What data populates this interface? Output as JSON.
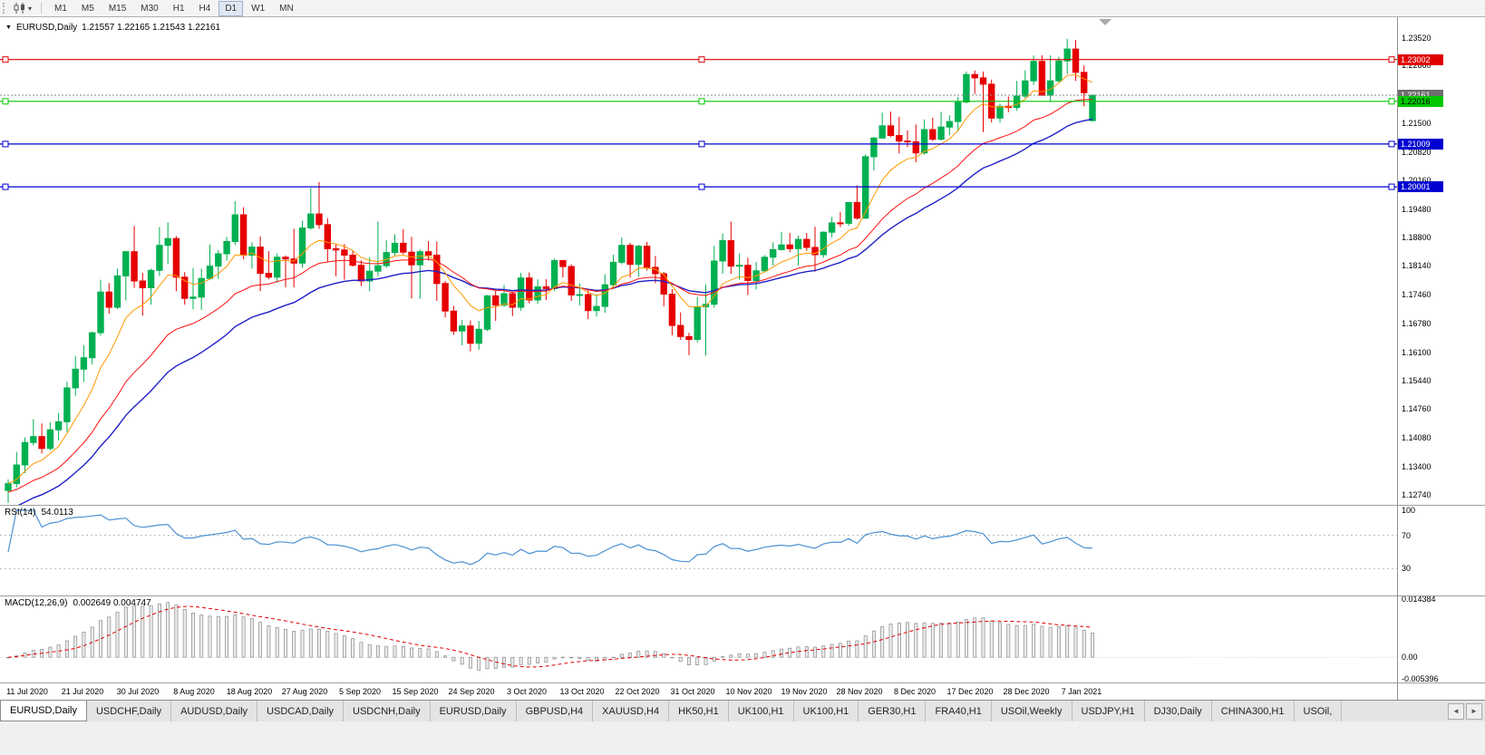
{
  "icons": {
    "caret": "▾",
    "collapse": "▼",
    "scroll_left": "◄",
    "scroll_right": "►"
  },
  "toolbar": {
    "timeframes": [
      {
        "label": "M1",
        "active": false
      },
      {
        "label": "M5",
        "active": false
      },
      {
        "label": "M15",
        "active": false
      },
      {
        "label": "M30",
        "active": false
      },
      {
        "label": "H1",
        "active": false
      },
      {
        "label": "H4",
        "active": false
      },
      {
        "label": "D1",
        "active": true
      },
      {
        "label": "W1",
        "active": false
      },
      {
        "label": "MN",
        "active": false
      }
    ]
  },
  "chart": {
    "title": "EURUSD,Daily",
    "ohlc_text": "1.21557 1.22165 1.21543 1.22161",
    "y_min": 1.125,
    "y_max": 1.24,
    "y_ticks": [
      "1.23520",
      "1.22860",
      "1.21500",
      "1.20820",
      "1.20160",
      "1.19480",
      "1.18800",
      "1.18140",
      "1.17460",
      "1.16780",
      "1.16100",
      "1.15440",
      "1.14760",
      "1.14080",
      "1.13400",
      "1.12740"
    ],
    "hlines": [
      {
        "price": 1.23002,
        "label": "1.23002",
        "color": "#e00000",
        "text": "#ffffff"
      },
      {
        "price": 1.22016,
        "label": "1.22016",
        "color": "#00c800",
        "text": "#000000"
      },
      {
        "price": 1.21009,
        "label": "1.21009",
        "color": "#0000d0",
        "text": "#ffffff"
      },
      {
        "price": 1.20001,
        "label": "1.20001",
        "color": "#0000d0",
        "text": "#ffffff"
      }
    ],
    "colors": {
      "bull": "#00b050",
      "bear": "#e60000",
      "ma_fast": "#ff9900",
      "ma_mid": "#ff1010",
      "ma_slow": "#2020c8",
      "rsi": "#4a90d2",
      "macd_hist_fill": "#ececec",
      "macd_hist_stroke": "#8a8a8a",
      "macd_signal": "#e00000",
      "current_badge": "#6e6e6e"
    }
  },
  "chart_data": {
    "type": "candlestick",
    "symbol": "EURUSD",
    "timeframe": "Daily",
    "current_price_label": "1.22161",
    "current_price_value": 1.22161,
    "x_labels": [
      "11 Jul 2020",
      "21 Jul 2020",
      "30 Jul 2020",
      "8 Aug 2020",
      "18 Aug 2020",
      "27 Aug 2020",
      "5 Sep 2020",
      "15 Sep 2020",
      "24 Sep 2020",
      "3 Oct 2020",
      "13 Oct 2020",
      "22 Oct 2020",
      "31 Oct 2020",
      "10 Nov 2020",
      "19 Nov 2020",
      "28 Nov 2020",
      "8 Dec 2020",
      "17 Dec 2020",
      "28 Dec 2020",
      "7 Jan 2021"
    ],
    "ohlc": [
      [
        1.1284,
        1.131,
        1.1255,
        1.13
      ],
      [
        1.13,
        1.1375,
        1.1291,
        1.1344
      ],
      [
        1.1344,
        1.1409,
        1.1325,
        1.1397
      ],
      [
        1.1397,
        1.1452,
        1.139,
        1.1411
      ],
      [
        1.1411,
        1.1442,
        1.1371,
        1.1383
      ],
      [
        1.1383,
        1.1444,
        1.1378,
        1.1427
      ],
      [
        1.1427,
        1.1467,
        1.1402,
        1.1446
      ],
      [
        1.1446,
        1.154,
        1.1422,
        1.1526
      ],
      [
        1.1526,
        1.1601,
        1.1507,
        1.157
      ],
      [
        1.157,
        1.1627,
        1.154,
        1.1597
      ],
      [
        1.1597,
        1.1658,
        1.1581,
        1.1656
      ],
      [
        1.1656,
        1.1781,
        1.1649,
        1.1752
      ],
      [
        1.1752,
        1.1773,
        1.1701,
        1.1716
      ],
      [
        1.1716,
        1.1807,
        1.1712,
        1.179
      ],
      [
        1.179,
        1.1849,
        1.1732,
        1.1847
      ],
      [
        1.1847,
        1.1908,
        1.1762,
        1.1778
      ],
      [
        1.1778,
        1.1797,
        1.1696,
        1.1762
      ],
      [
        1.1762,
        1.1807,
        1.1722,
        1.1803
      ],
      [
        1.1803,
        1.1905,
        1.179,
        1.1862
      ],
      [
        1.1862,
        1.1916,
        1.1818,
        1.1878
      ],
      [
        1.1878,
        1.1884,
        1.1754,
        1.1787
      ],
      [
        1.1787,
        1.1799,
        1.1722,
        1.1737
      ],
      [
        1.1737,
        1.1808,
        1.1711,
        1.174
      ],
      [
        1.174,
        1.1807,
        1.171,
        1.1784
      ],
      [
        1.1784,
        1.1864,
        1.1781,
        1.1813
      ],
      [
        1.1813,
        1.1851,
        1.1783,
        1.1842
      ],
      [
        1.1842,
        1.1882,
        1.1826,
        1.1871
      ],
      [
        1.1871,
        1.1966,
        1.1863,
        1.1934
      ],
      [
        1.1934,
        1.1952,
        1.1829,
        1.1839
      ],
      [
        1.1839,
        1.1869,
        1.1807,
        1.1858
      ],
      [
        1.1858,
        1.1883,
        1.1754,
        1.1796
      ],
      [
        1.1796,
        1.1848,
        1.1782,
        1.1787
      ],
      [
        1.1787,
        1.1843,
        1.1774,
        1.1834
      ],
      [
        1.1834,
        1.1838,
        1.1763,
        1.183
      ],
      [
        1.183,
        1.1901,
        1.1763,
        1.182
      ],
      [
        1.182,
        1.192,
        1.1809,
        1.1903
      ],
      [
        1.1903,
        1.1997,
        1.1899,
        1.1936
      ],
      [
        1.1936,
        1.2011,
        1.1901,
        1.1911
      ],
      [
        1.1911,
        1.1926,
        1.1823,
        1.1854
      ],
      [
        1.1854,
        1.1865,
        1.1789,
        1.1851
      ],
      [
        1.1851,
        1.1865,
        1.1781,
        1.1839
      ],
      [
        1.1839,
        1.1849,
        1.1812,
        1.1815
      ],
      [
        1.1815,
        1.1827,
        1.1766,
        1.1778
      ],
      [
        1.1778,
        1.1834,
        1.1754,
        1.1801
      ],
      [
        1.1801,
        1.1918,
        1.1789,
        1.1814
      ],
      [
        1.1814,
        1.1874,
        1.1809,
        1.1845
      ],
      [
        1.1845,
        1.1888,
        1.1838,
        1.1867
      ],
      [
        1.1867,
        1.19,
        1.1841,
        1.1846
      ],
      [
        1.1846,
        1.1882,
        1.1737,
        1.1816
      ],
      [
        1.1816,
        1.1852,
        1.1736,
        1.1847
      ],
      [
        1.1847,
        1.1872,
        1.1826,
        1.1839
      ],
      [
        1.1839,
        1.1871,
        1.1731,
        1.1772
      ],
      [
        1.1772,
        1.1778,
        1.1692,
        1.1707
      ],
      [
        1.1707,
        1.1719,
        1.1651,
        1.166
      ],
      [
        1.166,
        1.1686,
        1.1626,
        1.1672
      ],
      [
        1.1672,
        1.1685,
        1.1612,
        1.1631
      ],
      [
        1.1631,
        1.1684,
        1.1616,
        1.1664
      ],
      [
        1.1664,
        1.1745,
        1.166,
        1.1743
      ],
      [
        1.1743,
        1.1755,
        1.1684,
        1.1721
      ],
      [
        1.1721,
        1.1769,
        1.1717,
        1.1748
      ],
      [
        1.1748,
        1.1751,
        1.1695,
        1.1716
      ],
      [
        1.1716,
        1.1797,
        1.1708,
        1.1785
      ],
      [
        1.1785,
        1.1798,
        1.1725,
        1.1733
      ],
      [
        1.1733,
        1.1782,
        1.1724,
        1.1764
      ],
      [
        1.1764,
        1.1782,
        1.1733,
        1.176
      ],
      [
        1.176,
        1.1831,
        1.1754,
        1.1826
      ],
      [
        1.1826,
        1.1827,
        1.1786,
        1.1812
      ],
      [
        1.1812,
        1.1817,
        1.1731,
        1.1745
      ],
      [
        1.1745,
        1.1772,
        1.172,
        1.1746
      ],
      [
        1.1746,
        1.1758,
        1.1688,
        1.1708
      ],
      [
        1.1708,
        1.1747,
        1.1694,
        1.1718
      ],
      [
        1.1718,
        1.1794,
        1.1703,
        1.1769
      ],
      [
        1.1769,
        1.184,
        1.176,
        1.1822
      ],
      [
        1.1822,
        1.1881,
        1.1817,
        1.1862
      ],
      [
        1.1862,
        1.1868,
        1.1786,
        1.1817
      ],
      [
        1.1817,
        1.1863,
        1.1787,
        1.186
      ],
      [
        1.186,
        1.187,
        1.1803,
        1.181
      ],
      [
        1.181,
        1.1837,
        1.1773,
        1.1795
      ],
      [
        1.1795,
        1.1799,
        1.1718,
        1.1747
      ],
      [
        1.1747,
        1.1759,
        1.165,
        1.1673
      ],
      [
        1.1673,
        1.1704,
        1.1639,
        1.1647
      ],
      [
        1.1647,
        1.1656,
        1.1603,
        1.164
      ],
      [
        1.164,
        1.174,
        1.1633,
        1.1717
      ],
      [
        1.1717,
        1.177,
        1.1602,
        1.1723
      ],
      [
        1.1723,
        1.1861,
        1.1715,
        1.1825
      ],
      [
        1.1825,
        1.189,
        1.1795,
        1.1873
      ],
      [
        1.1873,
        1.1918,
        1.1795,
        1.1813
      ],
      [
        1.1813,
        1.1843,
        1.1781,
        1.1815
      ],
      [
        1.1815,
        1.1833,
        1.1745,
        1.1779
      ],
      [
        1.1779,
        1.1823,
        1.1758,
        1.1802
      ],
      [
        1.1802,
        1.1839,
        1.1799,
        1.1834
      ],
      [
        1.1834,
        1.1869,
        1.1814,
        1.1852
      ],
      [
        1.1852,
        1.1894,
        1.185,
        1.1863
      ],
      [
        1.1863,
        1.1891,
        1.1846,
        1.1854
      ],
      [
        1.1854,
        1.1885,
        1.1815,
        1.1876
      ],
      [
        1.1876,
        1.1891,
        1.1849,
        1.1857
      ],
      [
        1.1857,
        1.1906,
        1.18,
        1.184
      ],
      [
        1.184,
        1.1895,
        1.1833,
        1.1893
      ],
      [
        1.1893,
        1.1929,
        1.1881,
        1.1915
      ],
      [
        1.1915,
        1.1941,
        1.1905,
        1.1914
      ],
      [
        1.1914,
        1.1964,
        1.1908,
        1.1963
      ],
      [
        1.1963,
        1.2003,
        1.1923,
        1.1926
      ],
      [
        1.1926,
        1.2077,
        1.1924,
        1.2071
      ],
      [
        1.2071,
        1.2118,
        1.2039,
        1.2115
      ],
      [
        1.2115,
        1.2175,
        1.2114,
        1.2144
      ],
      [
        1.2144,
        1.2177,
        1.2117,
        1.2121
      ],
      [
        1.2121,
        1.2165,
        1.2079,
        1.2108
      ],
      [
        1.2108,
        1.2133,
        1.2094,
        1.2106
      ],
      [
        1.2106,
        1.2147,
        1.2058,
        1.208
      ],
      [
        1.208,
        1.2159,
        1.2076,
        1.2135
      ],
      [
        1.2135,
        1.2163,
        1.2108,
        1.2112
      ],
      [
        1.2112,
        1.2177,
        1.2109,
        1.2141
      ],
      [
        1.2141,
        1.2169,
        1.2122,
        1.2154
      ],
      [
        1.2154,
        1.2212,
        1.213,
        1.22
      ],
      [
        1.22,
        1.2272,
        1.2197,
        1.2265
      ],
      [
        1.2265,
        1.2274,
        1.2219,
        1.2257
      ],
      [
        1.2257,
        1.2272,
        1.2129,
        1.2242
      ],
      [
        1.2242,
        1.2253,
        1.2152,
        1.2162
      ],
      [
        1.2162,
        1.2196,
        1.2151,
        1.219
      ],
      [
        1.219,
        1.2213,
        1.2176,
        1.2187
      ],
      [
        1.2187,
        1.225,
        1.218,
        1.2214
      ],
      [
        1.2214,
        1.2275,
        1.2209,
        1.225
      ],
      [
        1.225,
        1.231,
        1.224,
        1.2296
      ],
      [
        1.2296,
        1.231,
        1.2214,
        1.2216
      ],
      [
        1.2216,
        1.231,
        1.22,
        1.225
      ],
      [
        1.225,
        1.2307,
        1.2247,
        1.2297
      ],
      [
        1.2297,
        1.2349,
        1.2266,
        1.2325
      ],
      [
        1.2325,
        1.2346,
        1.225,
        1.227
      ],
      [
        1.227,
        1.2286,
        1.219,
        1.2222
      ],
      [
        1.2156,
        1.2217,
        1.2154,
        1.2216
      ]
    ],
    "indicators": {
      "ma": [
        {
          "type": "ema",
          "period": 8,
          "color_key": "ma_fast"
        },
        {
          "type": "ema",
          "period": 20,
          "color_key": "ma_mid"
        },
        {
          "type": "ema",
          "period": 30,
          "color_key": "ma_slow"
        }
      ],
      "rsi": {
        "label": "RSI(14)",
        "value": "54.0113",
        "period": 14,
        "levels": [
          70,
          30
        ],
        "axis": [
          "100",
          "70",
          "30"
        ],
        "range": [
          0,
          100
        ]
      },
      "macd": {
        "label": "MACD(12,26,9)",
        "values": "0.002649 0.004747",
        "fast": 12,
        "slow": 26,
        "signal": 9,
        "axis": [
          "0.014384",
          "0.00",
          "-0.005396"
        ],
        "vmax": 0.0152,
        "vmin": -0.0062
      }
    }
  },
  "tabs": {
    "scroll_left": "◄",
    "scroll_right": "►",
    "items": [
      {
        "label": "EURUSD,Daily",
        "active": true
      },
      {
        "label": "USDCHF,Daily",
        "active": false
      },
      {
        "label": "AUDUSD,Daily",
        "active": false
      },
      {
        "label": "USDCAD,Daily",
        "active": false
      },
      {
        "label": "USDCNH,Daily",
        "active": false
      },
      {
        "label": "EURUSD,Daily",
        "active": false
      },
      {
        "label": "GBPUSD,H4",
        "active": false
      },
      {
        "label": "XAUUSD,H4",
        "active": false
      },
      {
        "label": "HK50,H1",
        "active": false
      },
      {
        "label": "UK100,H1",
        "active": false
      },
      {
        "label": "UK100,H1",
        "active": false
      },
      {
        "label": "GER30,H1",
        "active": false
      },
      {
        "label": "FRA40,H1",
        "active": false
      },
      {
        "label": "USOil,Weekly",
        "active": false
      },
      {
        "label": "USDJPY,H1",
        "active": false
      },
      {
        "label": "DJ30,Daily",
        "active": false
      },
      {
        "label": "CHINA300,H1",
        "active": false
      },
      {
        "label": "USOil,",
        "active": false
      }
    ]
  }
}
